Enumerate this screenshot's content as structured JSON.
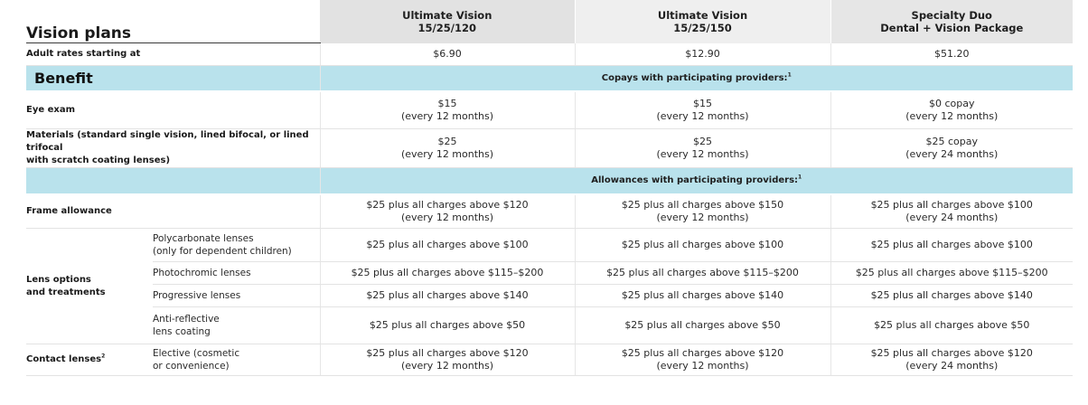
{
  "title": "Vision plans",
  "plans": [
    {
      "line1": "Ultimate Vision",
      "line2": "15/25/120"
    },
    {
      "line1": "Ultimate Vision",
      "line2": "15/25/150"
    },
    {
      "line1": "Specialty Duo",
      "line2": "Dental + Vision Package"
    }
  ],
  "rates": {
    "label": "Adult rates starting at",
    "values": [
      "$6.90",
      "$12.90",
      "$51.20"
    ]
  },
  "benefit_band": {
    "label": "Benefit",
    "note": "Copays with participating providers:",
    "note_sup": "1"
  },
  "eye_exam": {
    "label": "Eye exam",
    "values": [
      {
        "line1": "$15",
        "line2": "(every 12 months)"
      },
      {
        "line1": "$15",
        "line2": "(every 12 months)"
      },
      {
        "line1": "$0 copay",
        "line2": "(every 12 months)"
      }
    ]
  },
  "materials": {
    "label_line1": "Materials (standard single vision, lined bifocal, or lined trifocal",
    "label_line2": "with scratch coating lenses)",
    "values": [
      {
        "line1": "$25",
        "line2": "(every 12 months)"
      },
      {
        "line1": "$25",
        "line2": "(every 12 months)"
      },
      {
        "line1": "$25 copay",
        "line2": "(every 24 months)"
      }
    ]
  },
  "allowance_band": {
    "note": "Allowances with participating providers:",
    "note_sup": "1"
  },
  "frame": {
    "label": "Frame allowance",
    "values": [
      {
        "line1": "$25 plus all charges above $120",
        "line2": "(every 12 months)"
      },
      {
        "line1": "$25 plus all charges above $150",
        "line2": "(every 12 months)"
      },
      {
        "line1": "$25 plus all charges above $100",
        "line2": "(every 24 months)"
      }
    ]
  },
  "lens_options": {
    "label_line1": "Lens options",
    "label_line2": "and treatments",
    "rows": [
      {
        "sub_line1": "Polycarbonate lenses",
        "sub_line2": "(only for dependent children)",
        "values": [
          "$25 plus all charges above $100",
          "$25 plus all charges above $100",
          "$25 plus all charges above $100"
        ]
      },
      {
        "sub_line1": "Photochromic lenses",
        "sub_line2": "",
        "values": [
          "$25 plus all charges above $115–$200",
          "$25 plus all charges above $115–$200",
          "$25 plus all charges above $115–$200"
        ]
      },
      {
        "sub_line1": "Progressive lenses",
        "sub_line2": "",
        "values": [
          "$25 plus all charges above $140",
          "$25 plus all charges above $140",
          "$25 plus all charges above $140"
        ]
      },
      {
        "sub_line1": "Anti-reflective",
        "sub_line2": "lens coating",
        "values": [
          "$25 plus all charges above $50",
          "$25 plus all charges above $50",
          "$25 plus all charges above $50"
        ]
      }
    ]
  },
  "contact": {
    "label": "Contact lenses",
    "label_sup": "2",
    "sub_line1": "Elective (cosmetic",
    "sub_line2": "or convenience)",
    "values": [
      {
        "line1": "$25 plus all charges above $120",
        "line2": "(every 12 months)"
      },
      {
        "line1": "$25 plus all charges above $120",
        "line2": "(every 12 months)"
      },
      {
        "line1": "$25 plus all charges above $120",
        "line2": "(every 24 months)"
      }
    ]
  },
  "colors": {
    "band": "#b9e2ec",
    "header_plan1": "#e2e2e2",
    "header_plan2": "#efefef",
    "header_plan3": "#e6e6e6"
  }
}
